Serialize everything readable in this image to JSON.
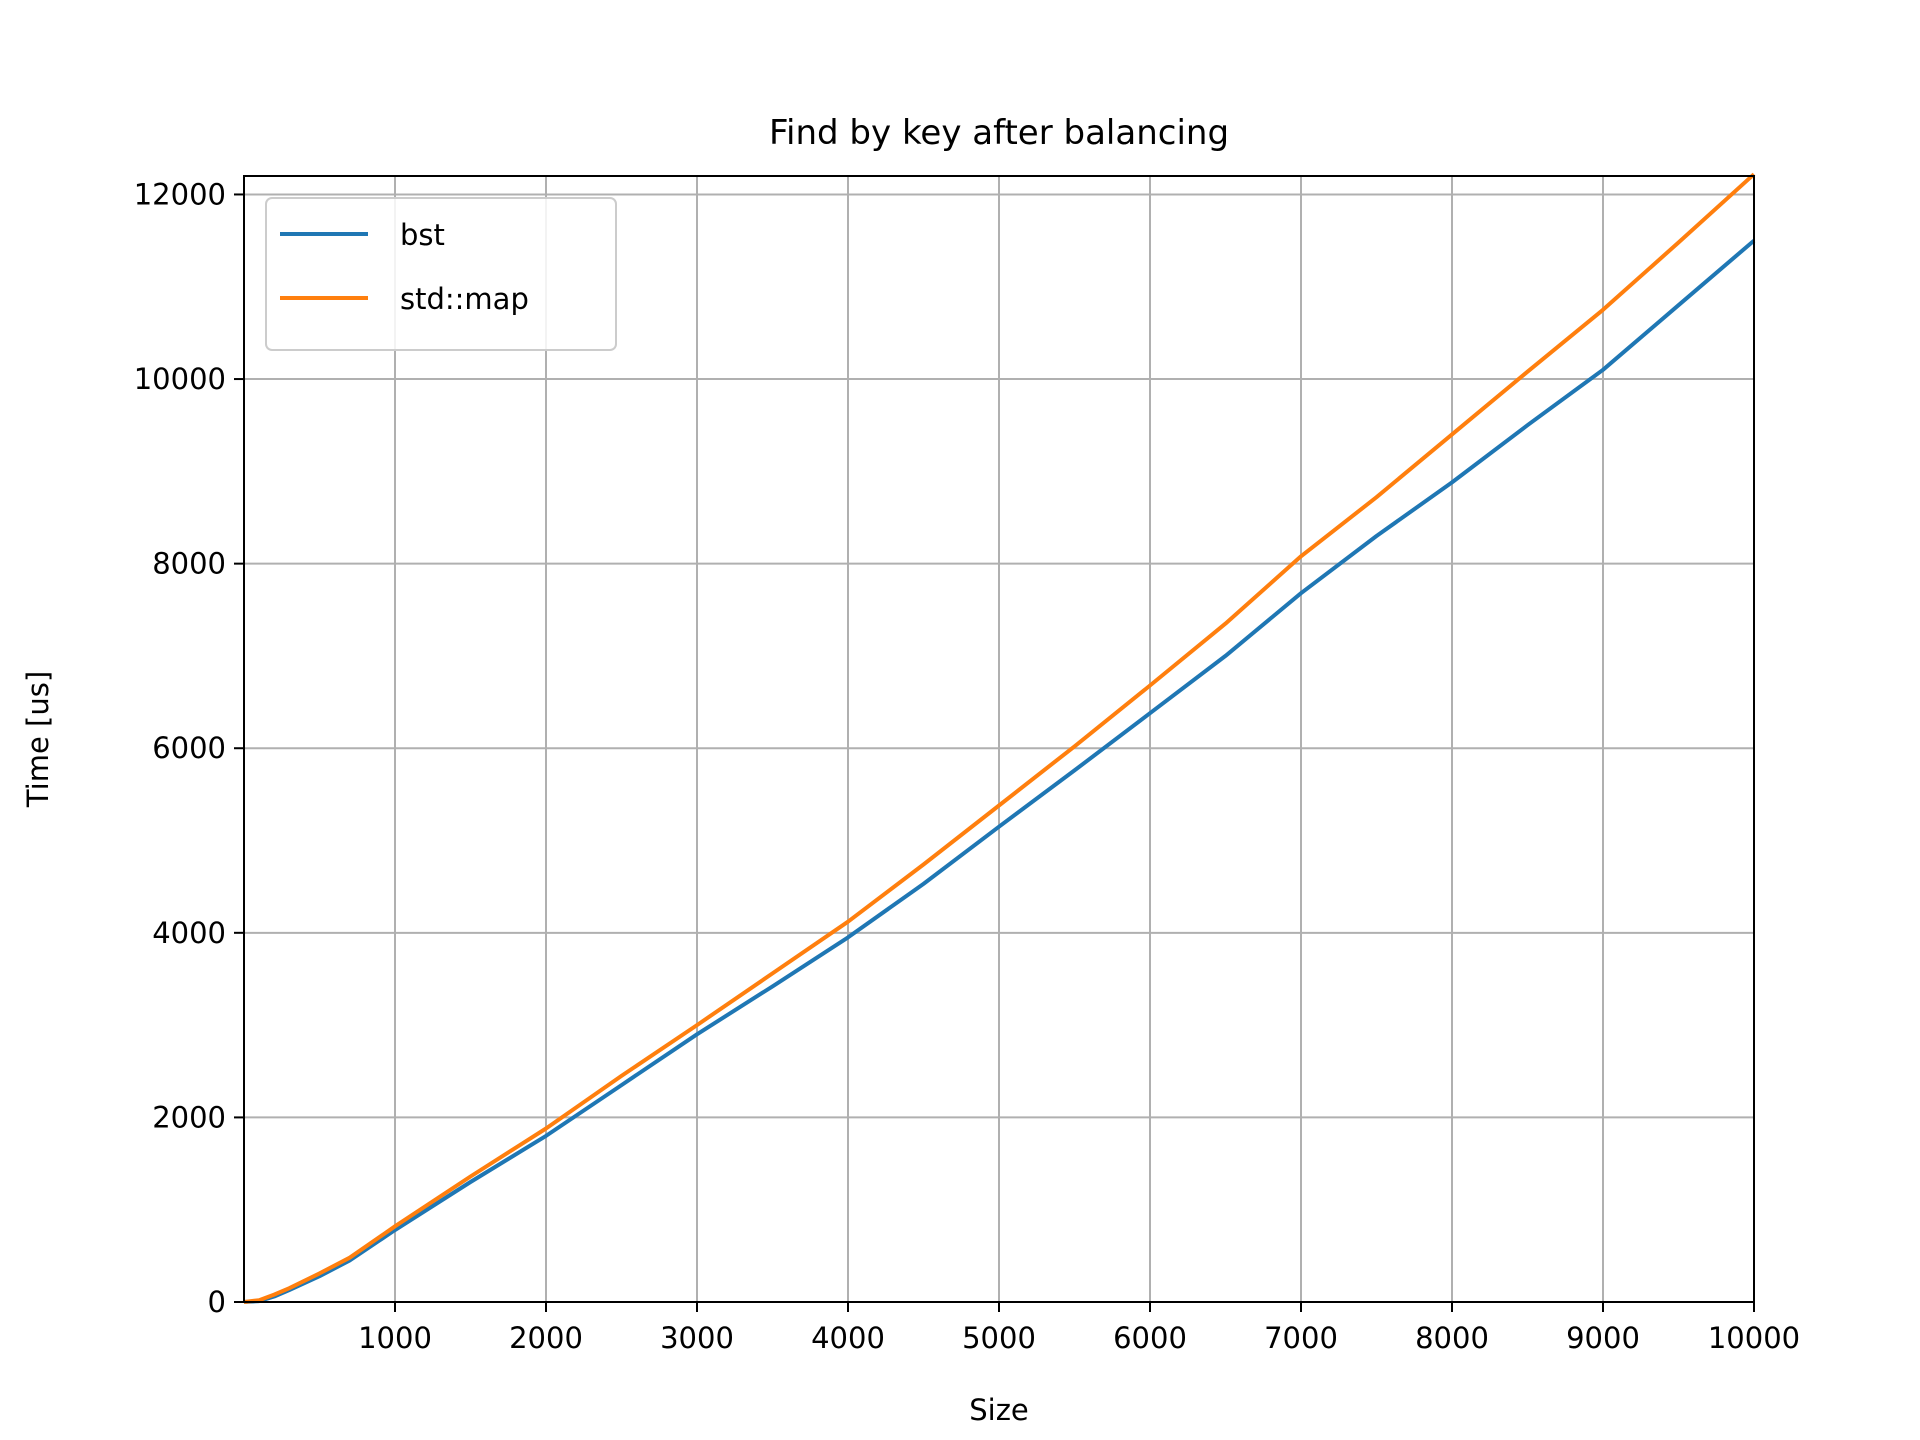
{
  "chart_data": {
    "type": "line",
    "title": "Find by key after balancing",
    "xlabel": "Size",
    "ylabel": "Time [us]",
    "xlim": [
      0,
      10000
    ],
    "ylim": [
      0,
      12200
    ],
    "xticks": [
      1000,
      2000,
      3000,
      4000,
      5000,
      6000,
      7000,
      8000,
      9000,
      10000
    ],
    "xtick_labels": [
      "1000",
      "2000",
      "3000",
      "4000",
      "5000",
      "6000",
      "7000",
      "8000",
      "9000",
      "10000"
    ],
    "yticks": [
      0,
      2000,
      4000,
      6000,
      8000,
      10000,
      12000
    ],
    "ytick_labels": [
      "0",
      "2000",
      "4000",
      "6000",
      "8000",
      "10000",
      "12000"
    ],
    "grid": true,
    "legend_position": "upper-left",
    "series": [
      {
        "name": "bst",
        "color": "#1f77b4",
        "x": [
          0,
          100,
          200,
          300,
          500,
          700,
          1000,
          1500,
          2000,
          2500,
          3000,
          3500,
          4000,
          4500,
          5000,
          5500,
          6000,
          6500,
          7000,
          7500,
          8000,
          8500,
          9000,
          9500,
          10000
        ],
        "y": [
          0,
          10,
          60,
          130,
          280,
          450,
          780,
          1300,
          1800,
          2350,
          2900,
          3420,
          3950,
          4530,
          5150,
          5760,
          6380,
          7000,
          7680,
          8300,
          8880,
          9500,
          10100,
          10800,
          11500
        ]
      },
      {
        "name": "std::map",
        "color": "#ff7f0e",
        "x": [
          0,
          100,
          200,
          300,
          500,
          700,
          1000,
          1500,
          2000,
          2500,
          3000,
          3500,
          4000,
          4500,
          5000,
          5500,
          6000,
          6500,
          7000,
          7500,
          8000,
          8500,
          9000,
          9500,
          10000
        ],
        "y": [
          0,
          20,
          80,
          150,
          310,
          480,
          820,
          1360,
          1880,
          2450,
          3000,
          3560,
          4120,
          4740,
          5380,
          6020,
          6680,
          7350,
          8080,
          8720,
          9400,
          10080,
          10750,
          11480,
          12220
        ]
      }
    ]
  }
}
